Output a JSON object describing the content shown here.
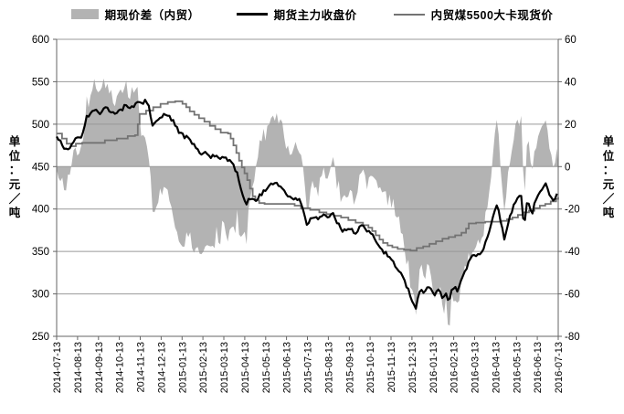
{
  "chart_data": {
    "type": "line",
    "title": "",
    "grid": true,
    "legend_position": "top",
    "plot": {
      "bg": "#ffffff",
      "gridline_color": "#999999",
      "axis_color": "#666666"
    },
    "left_axis": {
      "title": "单位：元／吨",
      "range": [
        250,
        600
      ],
      "ticks": [
        600,
        550,
        500,
        450,
        400,
        350,
        300,
        250
      ]
    },
    "right_axis": {
      "title": "单位：元／吨",
      "range": [
        -80,
        60
      ],
      "ticks": [
        60,
        40,
        20,
        0,
        -20,
        -40,
        -60,
        -80
      ]
    },
    "x_axis": {
      "range_months": [
        0,
        24
      ],
      "labels": [
        "2014-07-13",
        "2014-08-13",
        "2014-09-13",
        "2014-10-13",
        "2014-11-13",
        "2014-12-13",
        "2015-01-13",
        "2015-02-13",
        "2015-03-13",
        "2015-04-13",
        "2015-05-13",
        "2015-06-13",
        "2015-07-13",
        "2015-08-13",
        "2015-09-13",
        "2015-10-13",
        "2015-11-13",
        "2015-12-13",
        "2016-01-13",
        "2016-02-13",
        "2016-03-13",
        "2016-04-13",
        "2016-05-13",
        "2016-06-13",
        "2016-07-13"
      ]
    },
    "series": [
      {
        "name": "期现价差（内贸）",
        "type": "area",
        "axis": "right",
        "color": "#b3b3b3",
        "derived": "futures_minus_spot"
      },
      {
        "name": "期货主力收盘价",
        "type": "line",
        "axis": "left",
        "color": "#000000",
        "width": 2.2,
        "anchors": [
          [
            0,
            487
          ],
          [
            0.22,
            478
          ],
          [
            0.44,
            470
          ],
          [
            0.65,
            473
          ],
          [
            0.87,
            481
          ],
          [
            1.13,
            484
          ],
          [
            1.31,
            495
          ],
          [
            1.44,
            508
          ],
          [
            1.66,
            514
          ],
          [
            1.88,
            517
          ],
          [
            2.09,
            511
          ],
          [
            2.31,
            521
          ],
          [
            2.53,
            514
          ],
          [
            2.79,
            511
          ],
          [
            3.05,
            515
          ],
          [
            3.27,
            521
          ],
          [
            3.49,
            517
          ],
          [
            3.71,
            523
          ],
          [
            3.93,
            527
          ],
          [
            4.1,
            522
          ],
          [
            4.28,
            529
          ],
          [
            4.45,
            518
          ],
          [
            4.58,
            497
          ],
          [
            4.76,
            505
          ],
          [
            4.97,
            509
          ],
          [
            5.19,
            512
          ],
          [
            5.41,
            508
          ],
          [
            5.63,
            501
          ],
          [
            5.85,
            490
          ],
          [
            6.06,
            487
          ],
          [
            6.28,
            483
          ],
          [
            6.5,
            477
          ],
          [
            6.72,
            471
          ],
          [
            6.94,
            466
          ],
          [
            7.16,
            467
          ],
          [
            7.37,
            462
          ],
          [
            7.59,
            464
          ],
          [
            7.81,
            459
          ],
          [
            8.03,
            461
          ],
          [
            8.25,
            458
          ],
          [
            8.46,
            452
          ],
          [
            8.6,
            444
          ],
          [
            8.77,
            430
          ],
          [
            8.94,
            415
          ],
          [
            9.08,
            405
          ],
          [
            9.25,
            413
          ],
          [
            9.42,
            408
          ],
          [
            9.64,
            414
          ],
          [
            9.86,
            420
          ],
          [
            10.08,
            425
          ],
          [
            10.3,
            428
          ],
          [
            10.51,
            430
          ],
          [
            10.73,
            425
          ],
          [
            10.95,
            419
          ],
          [
            11.17,
            413
          ],
          [
            11.39,
            410
          ],
          [
            11.61,
            412
          ],
          [
            11.74,
            407
          ],
          [
            11.87,
            390
          ],
          [
            11.95,
            379
          ],
          [
            12.13,
            388
          ],
          [
            12.35,
            392
          ],
          [
            12.57,
            389
          ],
          [
            12.78,
            393
          ],
          [
            13.0,
            390
          ],
          [
            13.22,
            394
          ],
          [
            13.39,
            386
          ],
          [
            13.57,
            378
          ],
          [
            13.74,
            374
          ],
          [
            13.92,
            379
          ],
          [
            14.09,
            375
          ],
          [
            14.27,
            371
          ],
          [
            14.44,
            376
          ],
          [
            14.62,
            380
          ],
          [
            14.75,
            378
          ],
          [
            14.92,
            372
          ],
          [
            15.1,
            371
          ],
          [
            15.23,
            365
          ],
          [
            15.36,
            359
          ],
          [
            15.49,
            356
          ],
          [
            15.62,
            350
          ],
          [
            15.79,
            347
          ],
          [
            15.97,
            340
          ],
          [
            16.1,
            336
          ],
          [
            16.27,
            331
          ],
          [
            16.4,
            326
          ],
          [
            16.53,
            321
          ],
          [
            16.66,
            315
          ],
          [
            16.8,
            306
          ],
          [
            16.93,
            297
          ],
          [
            17.06,
            288
          ],
          [
            17.19,
            283
          ],
          [
            17.32,
            297
          ],
          [
            17.45,
            305
          ],
          [
            17.58,
            299
          ],
          [
            17.71,
            305
          ],
          [
            17.84,
            309
          ],
          [
            17.97,
            304
          ],
          [
            18.11,
            299
          ],
          [
            18.24,
            308
          ],
          [
            18.37,
            300
          ],
          [
            18.5,
            295
          ],
          [
            18.63,
            301
          ],
          [
            18.76,
            290
          ],
          [
            18.89,
            302
          ],
          [
            19.02,
            309
          ],
          [
            19.15,
            304
          ],
          [
            19.28,
            311
          ],
          [
            19.41,
            318
          ],
          [
            19.55,
            326
          ],
          [
            19.68,
            334
          ],
          [
            19.81,
            342
          ],
          [
            19.94,
            347
          ],
          [
            20.07,
            343
          ],
          [
            20.2,
            350
          ],
          [
            20.33,
            346
          ],
          [
            20.46,
            355
          ],
          [
            20.59,
            365
          ],
          [
            20.72,
            375
          ],
          [
            20.85,
            388
          ],
          [
            20.98,
            398
          ],
          [
            21.07,
            404
          ],
          [
            21.2,
            392
          ],
          [
            21.33,
            375
          ],
          [
            21.42,
            366
          ],
          [
            21.55,
            378
          ],
          [
            21.68,
            391
          ],
          [
            21.81,
            400
          ],
          [
            21.94,
            408
          ],
          [
            22.07,
            414
          ],
          [
            22.21,
            417
          ],
          [
            22.29,
            405
          ],
          [
            22.36,
            368
          ],
          [
            22.43,
            398
          ],
          [
            22.51,
            410
          ],
          [
            22.64,
            400
          ],
          [
            22.73,
            391
          ],
          [
            22.86,
            404
          ],
          [
            22.99,
            412
          ],
          [
            23.12,
            420
          ],
          [
            23.25,
            426
          ],
          [
            23.38,
            430
          ],
          [
            23.51,
            424
          ],
          [
            23.64,
            414
          ],
          [
            23.77,
            408
          ],
          [
            23.9,
            416
          ],
          [
            24.0,
            422
          ]
        ]
      },
      {
        "name": "内贸煤5500大卡现货价",
        "type": "line",
        "axis": "left",
        "color": "#737373",
        "width": 1.8,
        "interpolation": "step",
        "anchors": [
          [
            0,
            489
          ],
          [
            0.26,
            483
          ],
          [
            0.48,
            477
          ],
          [
            0.7,
            474
          ],
          [
            0.92,
            477
          ],
          [
            1.22,
            478
          ],
          [
            2.31,
            481
          ],
          [
            2.88,
            483
          ],
          [
            3.4,
            486
          ],
          [
            3.75,
            487
          ],
          [
            3.88,
            500
          ],
          [
            3.97,
            512
          ],
          [
            4.28,
            516
          ],
          [
            4.62,
            520
          ],
          [
            4.97,
            524
          ],
          [
            5.32,
            526
          ],
          [
            5.67,
            527
          ],
          [
            6.02,
            524
          ],
          [
            6.2,
            520
          ],
          [
            6.37,
            515
          ],
          [
            6.59,
            511
          ],
          [
            6.81,
            507
          ],
          [
            7.07,
            503
          ],
          [
            7.33,
            498
          ],
          [
            7.59,
            494
          ],
          [
            7.85,
            490
          ],
          [
            8.2,
            489
          ],
          [
            8.33,
            483
          ],
          [
            8.46,
            475
          ],
          [
            8.6,
            466
          ],
          [
            8.73,
            457
          ],
          [
            8.86,
            449
          ],
          [
            8.99,
            442
          ],
          [
            9.12,
            434
          ],
          [
            9.25,
            424
          ],
          [
            9.38,
            415
          ],
          [
            9.51,
            410
          ],
          [
            9.69,
            407
          ],
          [
            9.95,
            406
          ],
          [
            11.39,
            404
          ],
          [
            11.69,
            401
          ],
          [
            12.13,
            399
          ],
          [
            12.57,
            396
          ],
          [
            12.91,
            394
          ],
          [
            13.26,
            392
          ],
          [
            13.61,
            390
          ],
          [
            13.96,
            387
          ],
          [
            14.31,
            384
          ],
          [
            14.66,
            381
          ],
          [
            14.92,
            378
          ],
          [
            15.1,
            374
          ],
          [
            15.27,
            369
          ],
          [
            15.45,
            364
          ],
          [
            15.62,
            360
          ],
          [
            15.84,
            357
          ],
          [
            16.06,
            355
          ],
          [
            16.32,
            353
          ],
          [
            16.62,
            352
          ],
          [
            16.93,
            351
          ],
          [
            17.23,
            354
          ],
          [
            17.54,
            356
          ],
          [
            17.84,
            359
          ],
          [
            18.15,
            362
          ],
          [
            18.46,
            365
          ],
          [
            18.76,
            367
          ],
          [
            19.07,
            369
          ],
          [
            19.37,
            372
          ],
          [
            19.59,
            377
          ],
          [
            19.72,
            383
          ],
          [
            20.07,
            384
          ],
          [
            20.51,
            385
          ],
          [
            20.94,
            385
          ],
          [
            21.29,
            386
          ],
          [
            21.55,
            388
          ],
          [
            21.81,
            390
          ],
          [
            22.07,
            393
          ],
          [
            22.33,
            396
          ],
          [
            22.6,
            398
          ],
          [
            22.86,
            401
          ],
          [
            23.12,
            404
          ],
          [
            23.38,
            406
          ],
          [
            23.64,
            409
          ],
          [
            23.9,
            412
          ],
          [
            24.0,
            414
          ]
        ]
      }
    ],
    "render_hints": {
      "noise_seed": 9,
      "line_noise": 2.6,
      "area_noise": 3.4,
      "sample_step_months": 0.09
    }
  }
}
